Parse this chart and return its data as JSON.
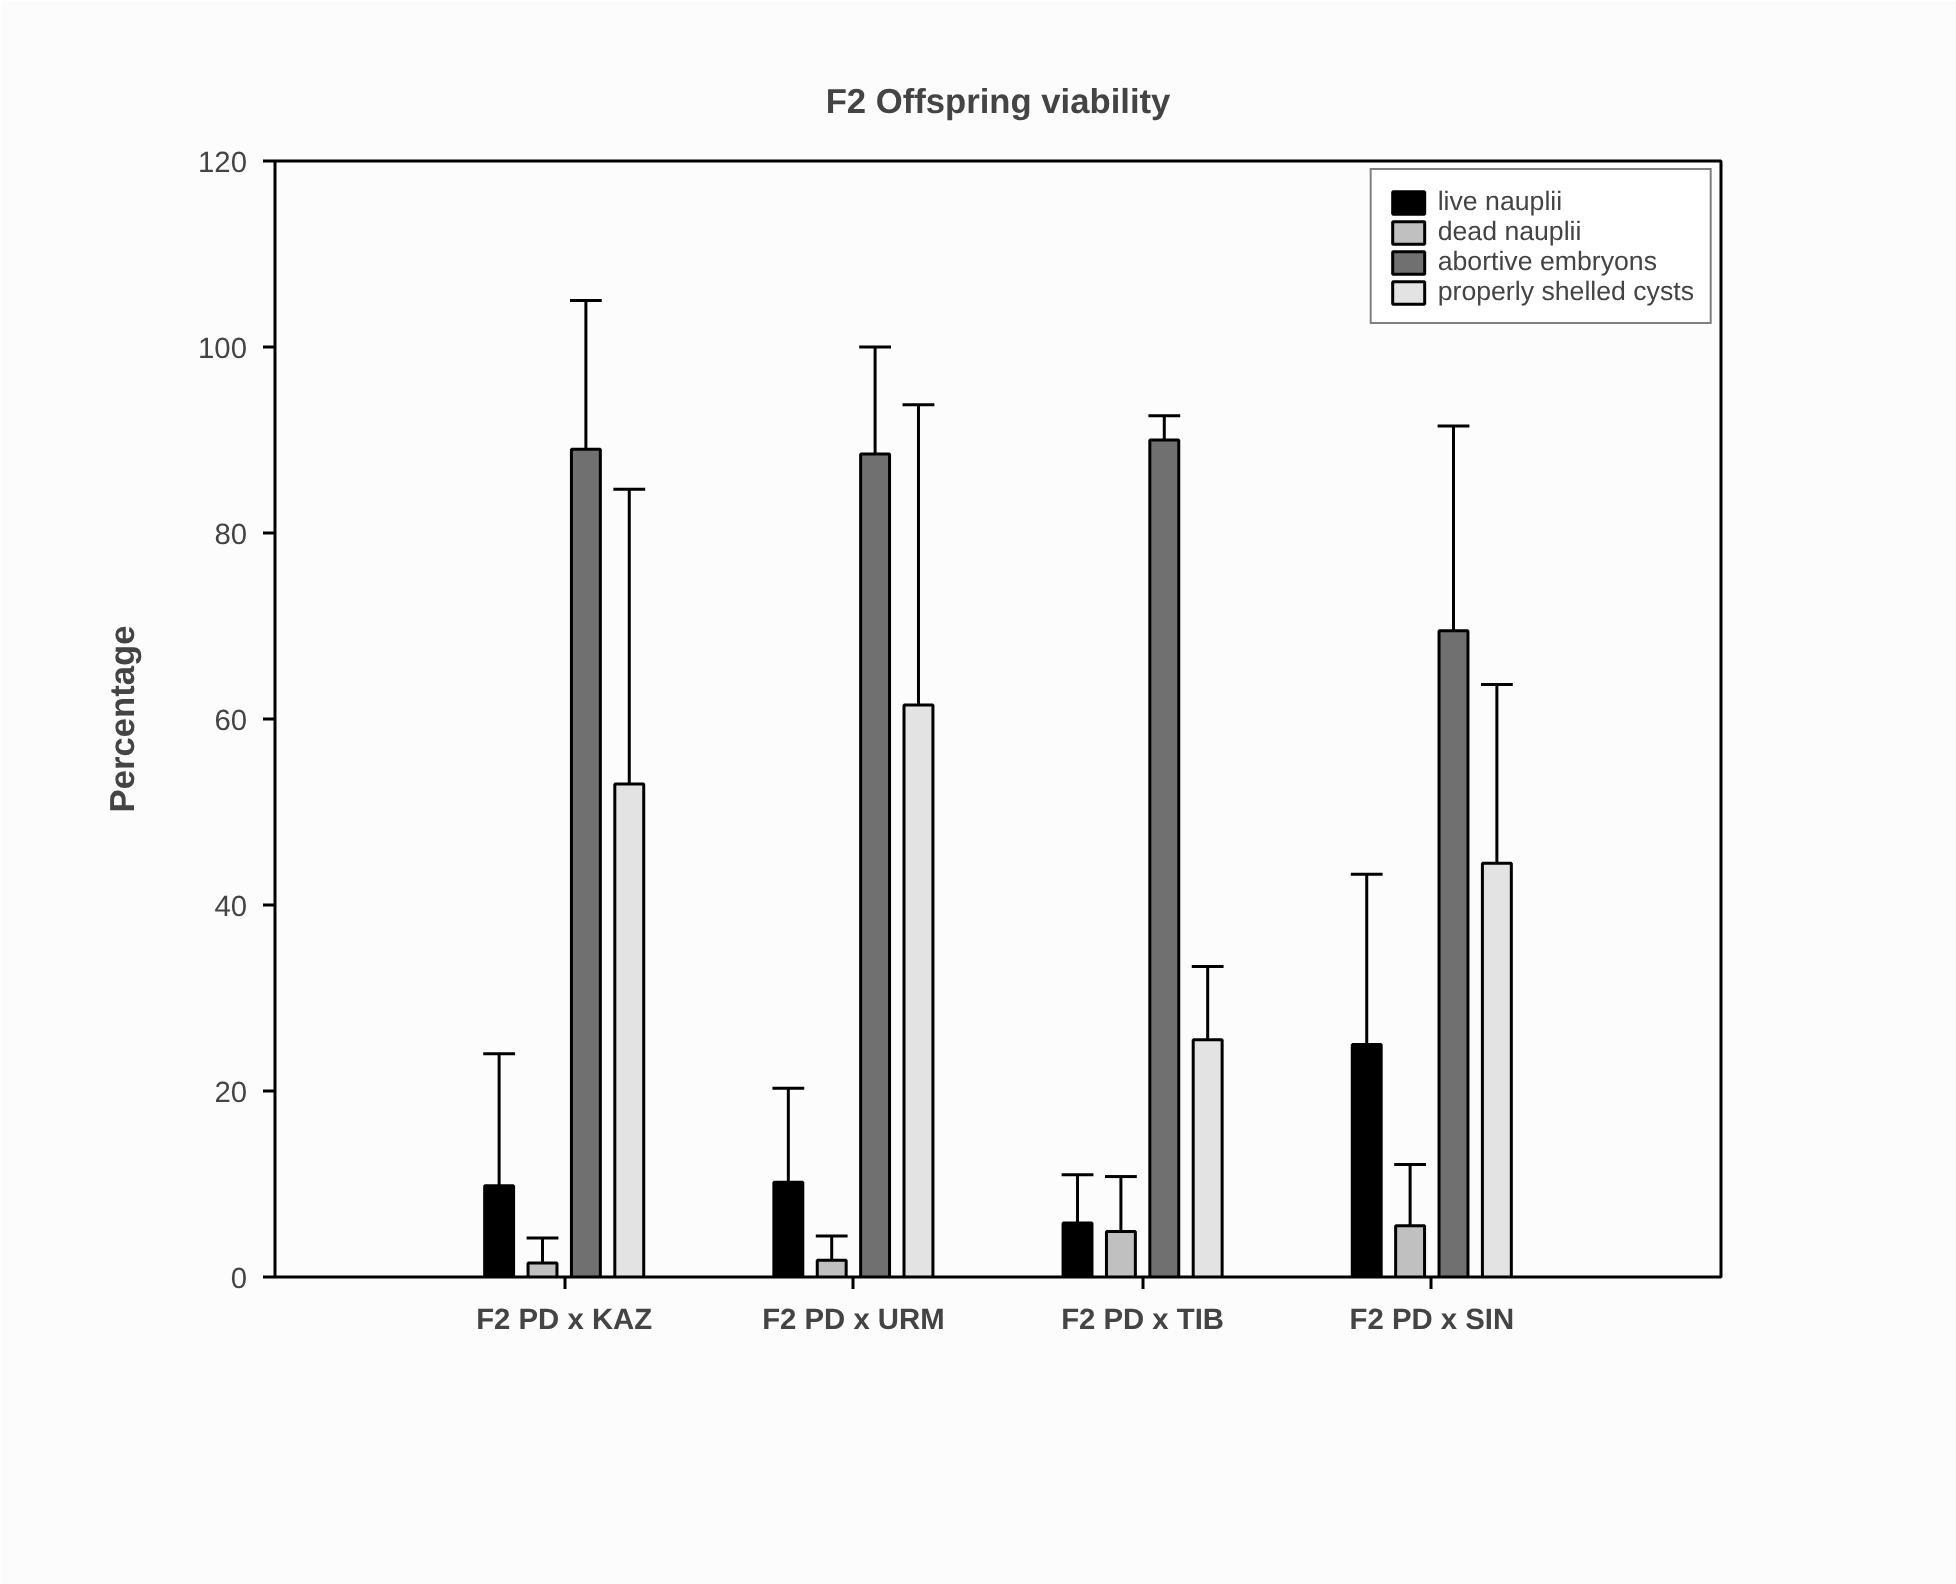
{
  "chart_data": {
    "type": "bar",
    "title": "F2 Offspring viability",
    "ylabel": "Percentage",
    "categories": [
      "F2 PD x KAZ",
      "F2 PD x URM",
      "F2 PD x TIB",
      "F2 PD x SIN"
    ],
    "series": [
      {
        "name": "live nauplii",
        "color": "#000000",
        "values": [
          9.8,
          10.2,
          5.8,
          25
        ],
        "errors": [
          [
            9.8,
            24
          ],
          [
            10.2,
            20.3
          ],
          [
            5.8,
            11
          ],
          [
            25,
            43.3
          ]
        ]
      },
      {
        "name": "dead nauplii",
        "color": "#c0c0c0",
        "values": [
          1.5,
          1.8,
          4.9,
          5.5
        ],
        "errors": [
          [
            1.5,
            4.2
          ],
          [
            1.8,
            4.4
          ],
          [
            4.9,
            10.8
          ],
          [
            5.5,
            12.1
          ]
        ]
      },
      {
        "name": "abortive embryons",
        "color": "#707070",
        "values": [
          89,
          88.5,
          90,
          69.5
        ],
        "errors": [
          [
            89,
            105
          ],
          [
            88.5,
            100
          ],
          [
            90,
            92.6
          ],
          [
            69.5,
            91.5
          ]
        ]
      },
      {
        "name": "properly shelled cysts",
        "color": "#e3e3e3",
        "values": [
          53,
          61.5,
          25.5,
          44.5
        ],
        "errors": [
          [
            53,
            84.7
          ],
          [
            61.5,
            93.8
          ],
          [
            25.5,
            33.4
          ],
          [
            44.5,
            63.7
          ]
        ]
      }
    ],
    "ylim": [
      0,
      120
    ],
    "yticks": [
      0,
      20,
      40,
      60,
      80,
      100,
      120
    ],
    "grid": false,
    "legend": "top right"
  }
}
